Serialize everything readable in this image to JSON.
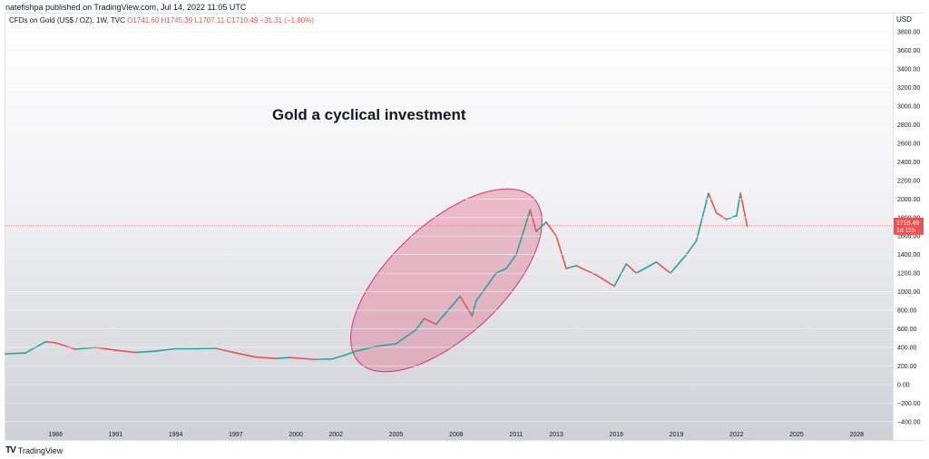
{
  "header": {
    "publisher": "natefishpa published on TradingView.com, Jul 14, 2022 11:05 UTC"
  },
  "legend": {
    "symbol": "CFDs on Gold (US$ / OZ), 1W, TVC",
    "open": "O1741.60",
    "high": "H1745.39",
    "low": "L1707.11",
    "close": "C1710.49",
    "change": "−31.31 (−1.80%)"
  },
  "price_scale": {
    "currency": "USD"
  },
  "current_price": {
    "value": "1710.49",
    "countdown": "1d 11h"
  },
  "annotation": {
    "text": "Gold a cyclical investment"
  },
  "footer": {
    "logo_text": "TradingView"
  },
  "colors": {
    "up": "#26a69a",
    "down": "#ef5350",
    "ellipse_fill": "#e07b95",
    "ellipse_stroke": "#d6336c"
  },
  "chart_data": {
    "type": "line",
    "title": "CFDs on Gold (US$ / OZ), 1W, TVC",
    "xlabel": "",
    "ylabel": "USD",
    "xlim": [
      1985.5,
      2029.8
    ],
    "ylim": [
      -500,
      3900
    ],
    "x_ticks": [
      "1988",
      "1991",
      "1994",
      "1997",
      "2000",
      "2002",
      "2005",
      "2008",
      "2011",
      "2013",
      "2016",
      "2019",
      "2022",
      "2025",
      "2028"
    ],
    "x_tick_values": [
      1988,
      1991,
      1994,
      1997,
      2000,
      2002,
      2005,
      2008,
      2011,
      2013,
      2016,
      2019,
      2022,
      2025,
      2028
    ],
    "y_ticks": [
      -400,
      -200,
      0,
      200,
      400,
      600,
      800,
      1000,
      1200,
      1400,
      1600,
      1800,
      2000,
      2200,
      2400,
      2600,
      2800,
      3000,
      3200,
      3400,
      3600,
      3800
    ],
    "y_tick_labels": [
      "−400.00",
      "−200.00",
      "0.00",
      "200.00",
      "400.00",
      "600.00",
      "800.00",
      "1000.00",
      "1200.00",
      "1400.00",
      "1600.00",
      "1800.00",
      "2000.00",
      "2200.00",
      "2400.00",
      "2600.00",
      "2800.00",
      "3000.00",
      "3200.00",
      "3400.00",
      "3600.00",
      "3800.00"
    ],
    "series": [
      {
        "name": "Gold weekly price",
        "x": [
          1985.5,
          1986.5,
          1987.5,
          1988.0,
          1989.0,
          1990.0,
          1991.0,
          1992.0,
          1993.0,
          1994.0,
          1995.0,
          1996.0,
          1997.0,
          1998.0,
          1999.0,
          1999.7,
          2000.0,
          2001.0,
          2001.8,
          2002.5,
          2003.0,
          2004.0,
          2005.0,
          2006.0,
          2006.4,
          2007.0,
          2008.2,
          2008.8,
          2009.0,
          2010.0,
          2010.5,
          2011.0,
          2011.7,
          2012.0,
          2012.5,
          2013.0,
          2013.5,
          2014.0,
          2015.0,
          2015.9,
          2016.5,
          2017.0,
          2018.0,
          2018.7,
          2019.5,
          2020.0,
          2020.6,
          2021.0,
          2021.5,
          2022.0,
          2022.2,
          2022.53
        ],
        "values": [
          330,
          340,
          460,
          450,
          380,
          400,
          370,
          345,
          360,
          385,
          385,
          390,
          340,
          295,
          280,
          290,
          285,
          270,
          275,
          320,
          360,
          410,
          440,
          590,
          710,
          650,
          950,
          740,
          900,
          1200,
          1250,
          1400,
          1880,
          1650,
          1750,
          1600,
          1250,
          1280,
          1180,
          1060,
          1300,
          1200,
          1320,
          1200,
          1400,
          1550,
          2060,
          1850,
          1780,
          1820,
          2060,
          1710.49
        ]
      }
    ],
    "current_price": 1710.49,
    "annotations": [
      "Gold a cyclical investment"
    ]
  }
}
